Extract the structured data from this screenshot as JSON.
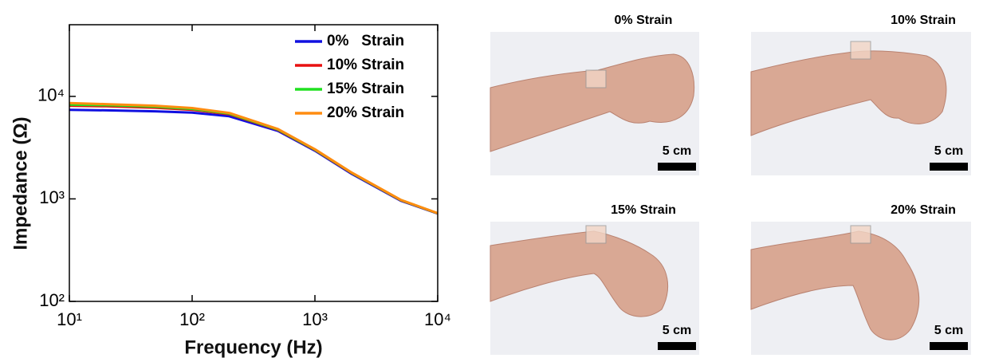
{
  "chart_data": {
    "type": "line",
    "x_label": "Frequency (Hz)",
    "y_label": "Impedance (Ω)",
    "log_x": true,
    "log_y": true,
    "xlim": [
      10,
      10000
    ],
    "ylim": [
      100,
      50000
    ],
    "xticks": [
      {
        "value": 10,
        "label": "10¹"
      },
      {
        "value": 100,
        "label": "10²"
      },
      {
        "value": 1000,
        "label": "10³"
      },
      {
        "value": 10000,
        "label": "10⁴"
      }
    ],
    "yticks": [
      {
        "value": 100,
        "label": "10²"
      },
      {
        "value": 1000,
        "label": "10³"
      },
      {
        "value": 10000,
        "label": "10⁴"
      }
    ],
    "legend": "upper right",
    "x": [
      10,
      20,
      50,
      100,
      200,
      500,
      1000,
      2000,
      5000,
      10000
    ],
    "series": [
      {
        "name": "0%   Strain",
        "color": "#1010e0",
        "values": [
          7400,
          7300,
          7150,
          6950,
          6400,
          4600,
          2950,
          1750,
          960,
          720
        ]
      },
      {
        "name": "10% Strain",
        "color": "#e81010",
        "values": [
          8100,
          8000,
          7750,
          7400,
          6700,
          4700,
          3000,
          1780,
          970,
          722
        ]
      },
      {
        "name": "15% Strain",
        "color": "#20e020",
        "values": [
          8300,
          8200,
          7950,
          7550,
          6800,
          4750,
          3020,
          1790,
          975,
          724
        ]
      },
      {
        "name": "20% Strain",
        "color": "#ff8c10",
        "values": [
          8600,
          8400,
          8100,
          7700,
          6900,
          4800,
          3050,
          1800,
          980,
          725
        ]
      }
    ]
  },
  "photos": [
    {
      "title": "0% Strain",
      "scale_label": "5 cm"
    },
    {
      "title": "10% Strain",
      "scale_label": "5 cm"
    },
    {
      "title": "15% Strain",
      "scale_label": "5 cm"
    },
    {
      "title": "20% Strain",
      "scale_label": "5 cm"
    }
  ]
}
